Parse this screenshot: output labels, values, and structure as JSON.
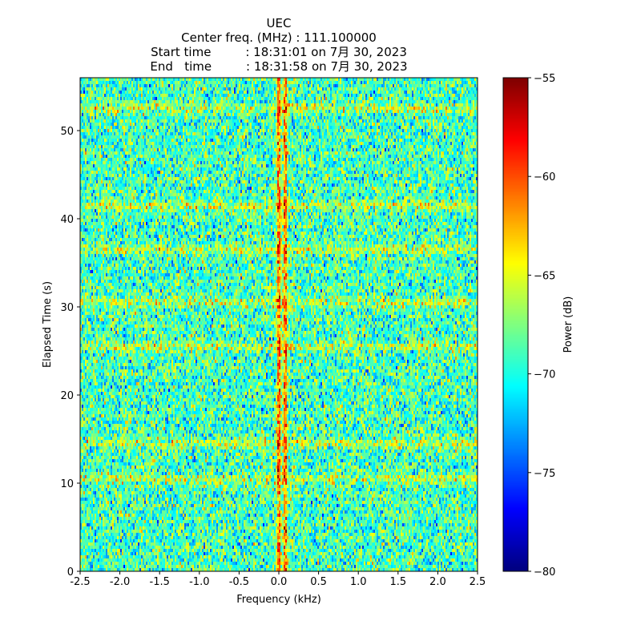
{
  "chart_data": {
    "type": "heatmap",
    "title": "UEC",
    "subtitle_lines": [
      "Center freq. (MHz) : 111.100000",
      "Start time         : 18:31:01 on 7月 30, 2023",
      "End   time         : 18:31:58 on 7月 30, 2023"
    ],
    "xlabel": "Frequency (kHz)",
    "ylabel": "Elapsed Time (s)",
    "xlim": [
      -2.5,
      2.5
    ],
    "ylim": [
      0,
      56
    ],
    "x_ticks": [
      -2.5,
      -2.0,
      -1.5,
      -1.0,
      -0.5,
      0.0,
      0.5,
      1.0,
      1.5,
      2.0,
      2.5
    ],
    "x_tick_labels": [
      "-2.5",
      "-2.0",
      "-1.5",
      "-1.0",
      "-0.5",
      "0.0",
      "0.5",
      "1.0",
      "1.5",
      "2.0",
      "2.5"
    ],
    "y_ticks": [
      0,
      10,
      20,
      30,
      40,
      50
    ],
    "y_tick_labels": [
      "0",
      "10",
      "20",
      "30",
      "40",
      "50"
    ],
    "colorbar": {
      "label": "Power (dB)",
      "range": [
        -80,
        -55
      ],
      "ticks": [
        -80,
        -75,
        -70,
        -65,
        -60,
        -55
      ],
      "tick_labels": [
        "−80",
        "−75",
        "−70",
        "−65",
        "−60",
        "−55"
      ],
      "colormap": "jet"
    },
    "signal": {
      "carrier_lines_khz": [
        0.0,
        0.08
      ],
      "background_power_db": -69,
      "carrier_power_db": -59,
      "strong_time_bands_s": [
        10.5,
        14.5,
        25.5,
        30.5,
        36.5,
        41.5,
        52.5
      ]
    },
    "grid": false
  }
}
